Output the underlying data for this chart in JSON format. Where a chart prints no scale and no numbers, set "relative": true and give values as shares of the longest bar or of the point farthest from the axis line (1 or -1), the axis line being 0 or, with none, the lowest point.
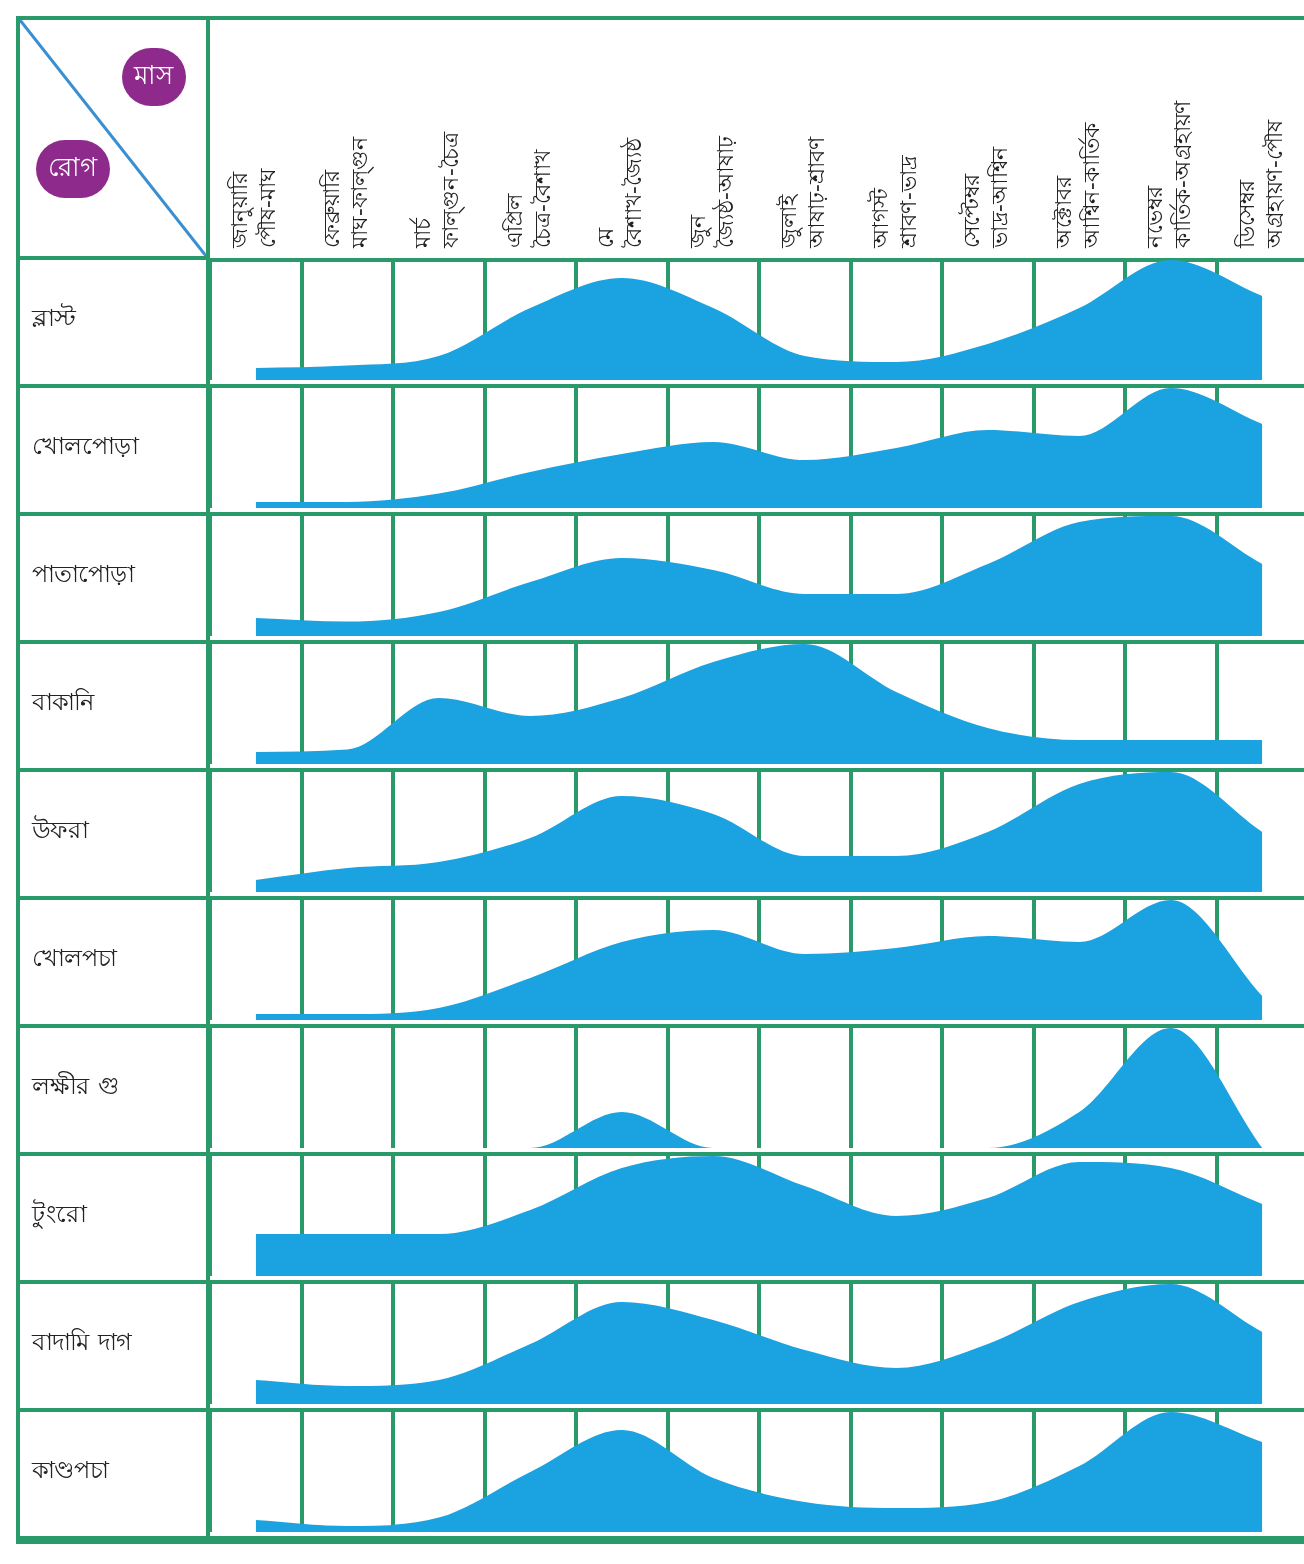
{
  "chart_data": [
    {
      "type": "area",
      "title": "ব্লাস্ট",
      "xlabel": "মাস",
      "ylabel": "রোগ",
      "categories": [
        "জানুয়ারি পৌষ-মাঘ",
        "ফেব্রুয়ারি মাঘ-ফাল্গুন",
        "মার্চ ফাল্গুন-চৈত্র",
        "এপ্রিল চৈত্র-বৈশাখ",
        "মে বৈশাখ-জ্যৈষ্ঠ",
        "জুন জ্যৈষ্ঠ-আষাঢ়",
        "জুলাই আষাঢ়-শ্রাবণ",
        "আগস্ট শ্রাবণ-ভাদ্র",
        "সেপ্টেম্বর ভাদ্র-আশ্বিন",
        "অক্টোবর আশ্বিন-কার্তিক",
        "নভেম্বর কার্তিক-অগ্রহায়ণ",
        "ডিসেম্বর অগ্রহায়ণ-পৌষ"
      ],
      "relative": true,
      "grid": "x",
      "tick_labels": "x",
      "color": "#1aa3e0",
      "values": [
        0.1,
        0.12,
        0.2,
        0.6,
        0.85,
        0.6,
        0.2,
        0.15,
        0.3,
        0.6,
        1,
        0.7
      ]
    },
    {
      "type": "area",
      "title": "খোলপোড়া",
      "categories": [
        null,
        null,
        null,
        null,
        null,
        null,
        null,
        null,
        null,
        null,
        null,
        null
      ],
      "relative": true,
      "grid": "x",
      "tick_labels": false,
      "color": "#1aa3e0",
      "values": [
        0.05,
        0.05,
        0.12,
        0.3,
        0.45,
        0.55,
        0.4,
        0.5,
        0.65,
        0.6,
        1,
        0.7
      ]
    },
    {
      "type": "area",
      "title": "পাতাপোড়া",
      "categories": [
        null,
        null,
        null,
        null,
        null,
        null,
        null,
        null,
        null,
        null,
        null,
        null
      ],
      "relative": true,
      "grid": "x",
      "tick_labels": false,
      "color": "#1aa3e0",
      "values": [
        0.15,
        0.12,
        0.2,
        0.45,
        0.65,
        0.55,
        0.35,
        0.35,
        0.6,
        0.95,
        1,
        0.6
      ]
    },
    {
      "type": "area",
      "title": "বাকানি",
      "categories": [
        null,
        null,
        null,
        null,
        null,
        null,
        null,
        null,
        null,
        null,
        null,
        null
      ],
      "relative": true,
      "grid": "x",
      "tick_labels": false,
      "color": "#1aa3e0",
      "values": [
        0.1,
        0.12,
        0.55,
        0.4,
        0.55,
        0.85,
        1,
        0.6,
        0.3,
        0.2,
        0.2,
        0.2
      ]
    },
    {
      "type": "area",
      "title": "উফরা",
      "categories": [
        null,
        null,
        null,
        null,
        null,
        null,
        null,
        null,
        null,
        null,
        null,
        null
      ],
      "relative": true,
      "grid": "x",
      "tick_labels": false,
      "color": "#1aa3e0",
      "values": [
        0.1,
        0.2,
        0.25,
        0.45,
        0.8,
        0.65,
        0.3,
        0.3,
        0.5,
        0.9,
        1,
        0.5
      ]
    },
    {
      "type": "area",
      "title": "খোলপচা",
      "categories": [
        null,
        null,
        null,
        null,
        null,
        null,
        null,
        null,
        null,
        null,
        null,
        null
      ],
      "relative": true,
      "grid": "x",
      "tick_labels": false,
      "color": "#1aa3e0",
      "values": [
        0.05,
        0.05,
        0.1,
        0.35,
        0.65,
        0.75,
        0.55,
        0.6,
        0.7,
        0.65,
        1,
        0.2
      ]
    },
    {
      "type": "area",
      "title": "লক্ষীর গু",
      "categories": [
        null,
        null,
        null,
        null,
        null,
        null,
        null,
        null,
        null,
        null,
        null,
        null
      ],
      "relative": true,
      "grid": "x",
      "tick_labels": false,
      "color": "#1aa3e0",
      "values": [
        0,
        0,
        0,
        0,
        0.3,
        0,
        0,
        0,
        0,
        0.3,
        1,
        0
      ]
    },
    {
      "type": "area",
      "title": "টুংরো",
      "categories": [
        null,
        null,
        null,
        null,
        null,
        null,
        null,
        null,
        null,
        null,
        null,
        null
      ],
      "relative": true,
      "grid": "x",
      "tick_labels": false,
      "color": "#1aa3e0",
      "values": [
        0.35,
        0.35,
        0.35,
        0.55,
        0.9,
        1,
        0.75,
        0.5,
        0.65,
        0.95,
        0.9,
        0.6
      ]
    },
    {
      "type": "area",
      "title": "বাদামি দাগ",
      "categories": [
        null,
        null,
        null,
        null,
        null,
        null,
        null,
        null,
        null,
        null,
        null,
        null
      ],
      "relative": true,
      "grid": "x",
      "tick_labels": false,
      "color": "#1aa3e0",
      "values": [
        0.2,
        0.15,
        0.2,
        0.5,
        0.85,
        0.7,
        0.45,
        0.3,
        0.5,
        0.85,
        1,
        0.6
      ]
    },
    {
      "type": "area",
      "title": "কাণ্ডপচা",
      "categories": [
        null,
        null,
        null,
        null,
        null,
        null,
        null,
        null,
        null,
        null,
        null,
        null
      ],
      "relative": true,
      "grid": "x",
      "tick_labels": false,
      "color": "#1aa3e0",
      "values": [
        0.1,
        0.05,
        0.12,
        0.5,
        0.85,
        0.45,
        0.25,
        0.2,
        0.25,
        0.55,
        1,
        0.75
      ]
    }
  ]
}
